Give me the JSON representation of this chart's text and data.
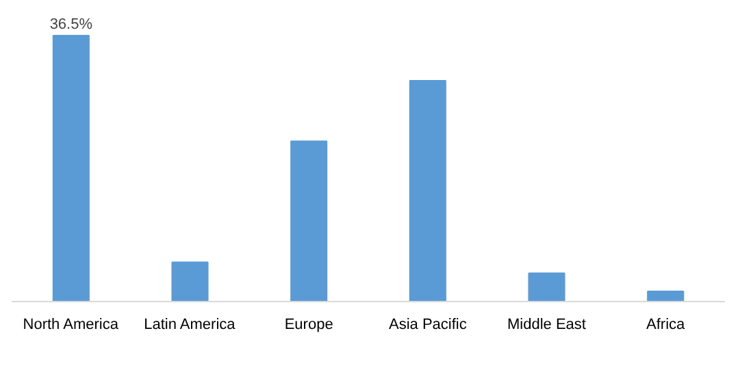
{
  "chart_data": {
    "type": "bar",
    "categories": [
      "North America",
      "Latin America",
      "Europe",
      "Asia Pacific",
      "Middle East",
      "Africa"
    ],
    "values": [
      36.5,
      5.4,
      22.0,
      30.3,
      3.9,
      1.4
    ],
    "value_labels": [
      "36.5%",
      null,
      null,
      null,
      null,
      null
    ],
    "color": "#5b9bd5",
    "grid": false
  }
}
